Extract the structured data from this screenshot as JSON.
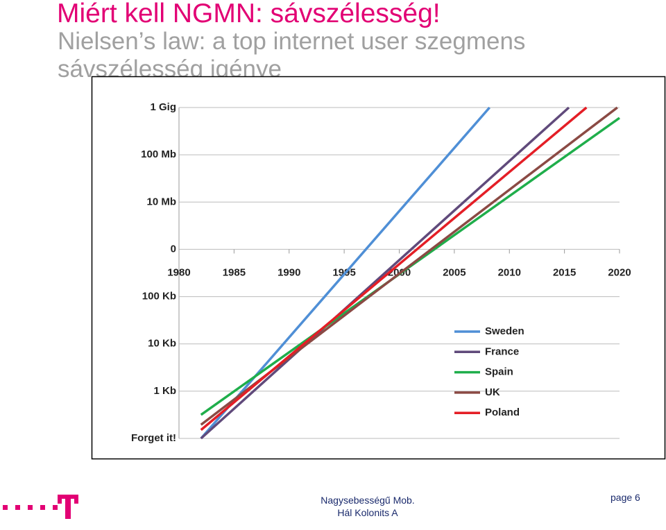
{
  "slide": {
    "title": "Miért kell NGMN: sávszélesség!",
    "subtitle": "Nielsen’s law: a top internet user szegmens sávszélesség igénye",
    "footer": "Nagysebességű Mob. Hál Kolonits A",
    "page": "page 6"
  },
  "chart_data": {
    "type": "line",
    "xlim": [
      1980,
      2020
    ],
    "xticks": [
      1980,
      1985,
      1990,
      1995,
      2000,
      2005,
      2010,
      2015,
      2020
    ],
    "ylim": [
      0,
      7
    ],
    "yticks": [
      {
        "value": 0,
        "label": "Forget it!"
      },
      {
        "value": 1,
        "label": "1 Kb"
      },
      {
        "value": 2,
        "label": "10 Kb"
      },
      {
        "value": 3,
        "label": "100 Kb"
      },
      {
        "value": 4,
        "label": "0"
      },
      {
        "value": 5,
        "label": "10 Mb"
      },
      {
        "value": 6,
        "label": "100 Mb"
      },
      {
        "value": 7,
        "label": "1 Gig"
      }
    ],
    "grid": true,
    "series": [
      {
        "name": "Sweden",
        "color": "#4f8fd6",
        "x": [
          1982,
          2008.2
        ],
        "values": [
          0,
          7
        ]
      },
      {
        "name": "France",
        "color": "#604a7b",
        "x": [
          1982,
          2015.4
        ],
        "values": [
          0,
          7
        ]
      },
      {
        "name": "Spain",
        "color": "#1fae4b",
        "x": [
          1982,
          2020
        ],
        "values": [
          0.5,
          6.78
        ]
      },
      {
        "name": "UK",
        "color": "#8b4a44",
        "x": [
          1982,
          2019.8
        ],
        "values": [
          0.29,
          7
        ]
      },
      {
        "name": "Poland",
        "color": "#e41e26",
        "x": [
          1982,
          2017
        ],
        "values": [
          0.18,
          7
        ]
      }
    ]
  }
}
